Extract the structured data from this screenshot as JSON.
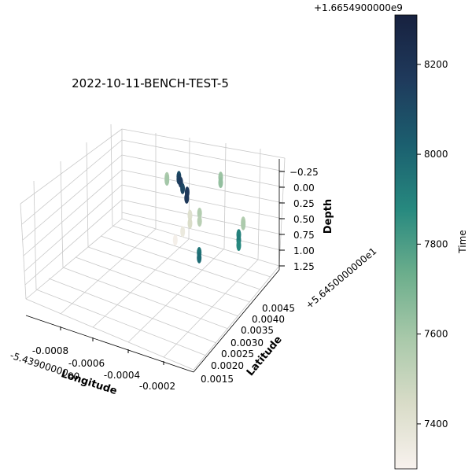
{
  "chart_data": {
    "type": "scatter",
    "projection": "3d",
    "title": "2022-10-11-BENCH-TEST-5",
    "grid": true,
    "xlabel": "Longitude",
    "ylabel": "Latitude",
    "zlabel": "Depth",
    "x_offset_label": "-5.43900000e0",
    "y_offset_label": "+5.6450000000e1",
    "x_ticks": [
      "-0.0008",
      "-0.0006",
      "-0.0004",
      "-0.0002"
    ],
    "y_ticks": [
      "0.0015",
      "0.0020",
      "0.0025",
      "0.0030",
      "0.0035",
      "0.0040",
      "0.0045"
    ],
    "z_ticks": [
      "−0.25",
      "0.00",
      "0.25",
      "0.50",
      "0.75",
      "1.00",
      "1.25"
    ],
    "z_inverted": true,
    "colorbar": {
      "label": "Time",
      "offset_label": "+1.6654900000e9",
      "ticks": [
        "7400",
        "7600",
        "7800",
        "8000",
        "8200"
      ],
      "tick_values": [
        7400,
        7600,
        7800,
        8000,
        8200
      ],
      "range": [
        7300,
        8310
      ],
      "colormap_stops": [
        "#f8f2ee",
        "#d9dcc8",
        "#a9c9aa",
        "#6cae8c",
        "#27897f",
        "#1b5f6f",
        "#1f3a5c",
        "#17213f"
      ]
    },
    "series": [
      {
        "points": [
          {
            "lon": -0.00062,
            "lat": 0.0047,
            "depth": 0.05,
            "time": 8100
          },
          {
            "lon": -0.00062,
            "lat": 0.0047,
            "depth": 0.1,
            "time": 8140
          },
          {
            "lon": -0.0006,
            "lat": 0.0046,
            "depth": 0.08,
            "time": 8160
          },
          {
            "lon": -0.00058,
            "lat": 0.0045,
            "depth": 0.12,
            "time": 8120
          },
          {
            "lon": -0.00056,
            "lat": 0.0045,
            "depth": 0.15,
            "time": 8170
          },
          {
            "lon": -0.00055,
            "lat": 0.0044,
            "depth": 0.2,
            "time": 8180
          },
          {
            "lon": -0.00066,
            "lat": 0.0046,
            "depth": 0.1,
            "time": 7580
          },
          {
            "lon": -0.00066,
            "lat": 0.0046,
            "depth": 0.15,
            "time": 7600
          },
          {
            "lon": -0.00045,
            "lat": 0.0048,
            "depth": -0.2,
            "time": 7620
          },
          {
            "lon": -0.00045,
            "lat": 0.0048,
            "depth": -0.1,
            "time": 7640
          },
          {
            "lon": -0.0005,
            "lat": 0.0041,
            "depth": 0.3,
            "time": 7420
          },
          {
            "lon": -0.0005,
            "lat": 0.0041,
            "depth": 0.45,
            "time": 7440
          },
          {
            "lon": -0.00052,
            "lat": 0.004,
            "depth": 0.6,
            "time": 7360
          },
          {
            "lon": -0.00054,
            "lat": 0.0039,
            "depth": 0.75,
            "time": 7320
          },
          {
            "lon": -0.00047,
            "lat": 0.0042,
            "depth": 0.25,
            "time": 7560
          },
          {
            "lon": -0.00047,
            "lat": 0.0042,
            "depth": 0.4,
            "time": 7540
          },
          {
            "lon": -0.0004,
            "lat": 0.0036,
            "depth": 0.6,
            "time": 7950
          },
          {
            "lon": -0.0004,
            "lat": 0.0036,
            "depth": 0.7,
            "time": 7980
          },
          {
            "lon": -0.00022,
            "lat": 0.0037,
            "depth": -0.25,
            "time": 7560
          },
          {
            "lon": -0.00022,
            "lat": 0.0037,
            "depth": -0.2,
            "time": 7580
          },
          {
            "lon": -0.00018,
            "lat": 0.0032,
            "depth": -0.3,
            "time": 7900
          },
          {
            "lon": -0.00018,
            "lat": 0.0032,
            "depth": -0.2,
            "time": 7920
          },
          {
            "lon": -0.00018,
            "lat": 0.0032,
            "depth": -0.1,
            "time": 7880
          }
        ]
      }
    ]
  }
}
